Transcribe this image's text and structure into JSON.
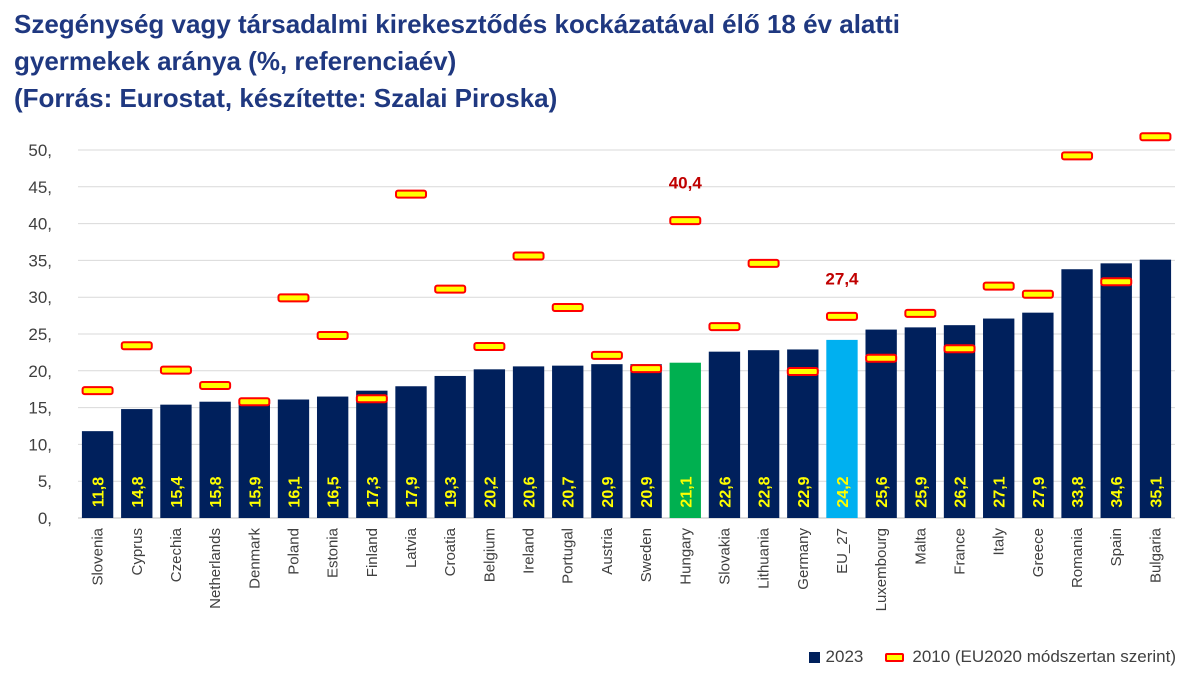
{
  "title_lines": [
    "Szegénység vagy társadalmi kirekesztődés kockázatával élő 18 év alatti",
    "gyermekek aránya (%, referenciaév)",
    "(Forrás: Eurostat, készítette: Szalai Piroska)"
  ],
  "colors": {
    "bar": "#00205c",
    "highlight_hungary": "#00b050",
    "highlight_eu": "#00b0f0",
    "marker_fill": "#ffff00",
    "marker_border": "#ff0000",
    "value_label": "#ffff00",
    "callout": "#c00000",
    "axis_text": "#404040",
    "grid": "#d9d9d9"
  },
  "chart_data": {
    "type": "bar",
    "categories": [
      "Slovenia",
      "Cyprus",
      "Czechia",
      "Netherlands",
      "Denmark",
      "Poland",
      "Estonia",
      "Finland",
      "Latvia",
      "Croatia",
      "Belgium",
      "Ireland",
      "Portugal",
      "Austria",
      "Sweden",
      "Hungary",
      "Slovakia",
      "Lithuania",
      "Germany",
      "EU_27",
      "Luxembourg",
      "Malta",
      "France",
      "Italy",
      "Greece",
      "Romania",
      "Spain",
      "Bulgaria"
    ],
    "series": [
      {
        "name": "2023",
        "type": "bar",
        "values": [
          11.8,
          14.8,
          15.4,
          15.8,
          15.9,
          16.1,
          16.5,
          17.3,
          17.9,
          19.3,
          20.2,
          20.6,
          20.7,
          20.9,
          20.9,
          21.1,
          22.6,
          22.8,
          22.9,
          24.2,
          25.6,
          25.9,
          26.2,
          27.1,
          27.9,
          33.8,
          34.6,
          35.1
        ],
        "value_labels": [
          "11,8",
          "14,8",
          "15,4",
          "15,8",
          "15,9",
          "16,1",
          "16,5",
          "17,3",
          "17,9",
          "19,3",
          "20,2",
          "20,6",
          "20,7",
          "20,9",
          "20,9",
          "21,1",
          "22,6",
          "22,8",
          "22,9",
          "24,2",
          "25,6",
          "25,9",
          "26,2",
          "27,1",
          "27,9",
          "33,8",
          "34,6",
          "35,1"
        ]
      },
      {
        "name": "2010 (EU2020 módszertan szerint)",
        "type": "marker",
        "values": [
          17.3,
          23.4,
          20.1,
          18.0,
          15.8,
          29.9,
          24.8,
          16.2,
          44.0,
          31.1,
          23.3,
          35.6,
          28.6,
          22.1,
          20.3,
          40.4,
          26.0,
          34.6,
          19.9,
          27.4,
          21.7,
          27.8,
          23.0,
          31.5,
          30.4,
          49.2,
          32.1,
          51.8
        ]
      }
    ],
    "highlights": {
      "Hungary": "green",
      "EU_27": "light-blue"
    },
    "callouts": [
      {
        "category": "Hungary",
        "label": "40,4"
      },
      {
        "category": "EU_27",
        "label": "27,4"
      }
    ],
    "y_tick_labels": [
      "0,",
      "5,",
      "10,",
      "15,",
      "20,",
      "25,",
      "30,",
      "35,",
      "40,",
      "45,",
      "50,"
    ],
    "ylim": [
      0,
      50
    ],
    "y_step": 5,
    "grid": true,
    "legend_position": "bottom-right"
  }
}
